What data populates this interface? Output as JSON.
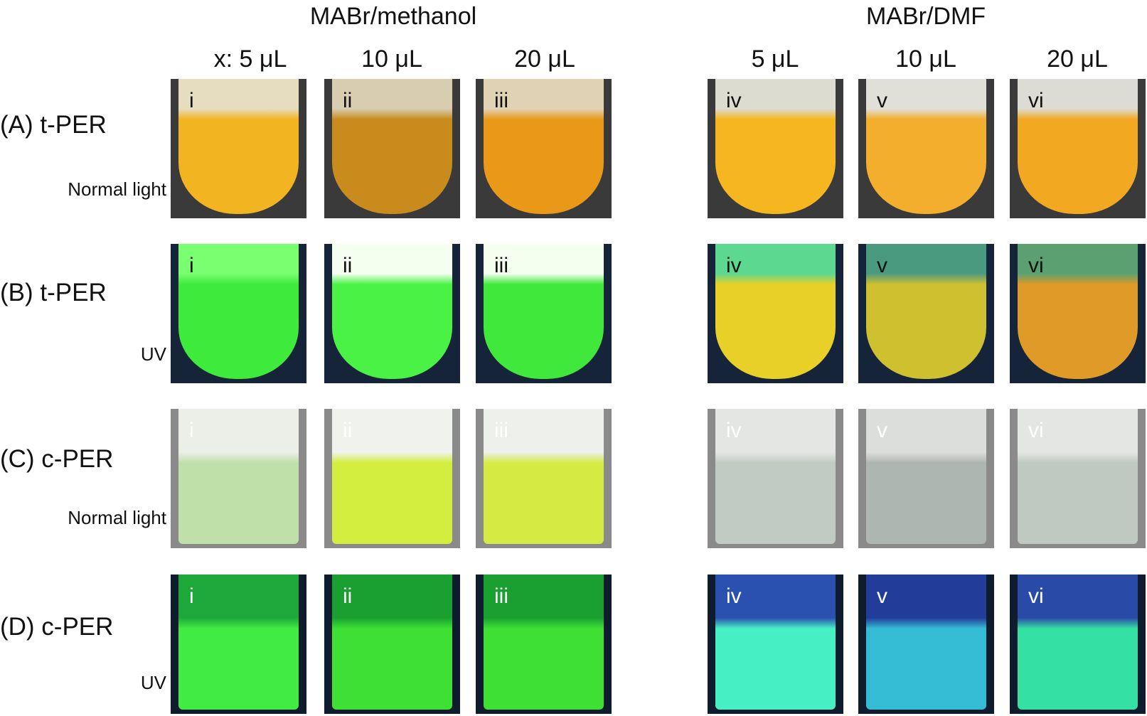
{
  "groups": [
    "MABr/methanol",
    "MABr/DMF"
  ],
  "columns": [
    "x: 5 μL",
    "10 μL",
    "20 μL",
    "5 μL",
    "10 μL",
    "20 μL"
  ],
  "panels": [
    "i",
    "ii",
    "iii",
    "iv",
    "v",
    "vi"
  ],
  "rows": [
    {
      "label": "(A) t-PER",
      "light": "Normal light"
    },
    {
      "label": "(B) t-PER",
      "light": "UV"
    },
    {
      "label": "(C) c-PER",
      "light": "Normal light"
    },
    {
      "label": "(D) c-PER",
      "light": "UV"
    }
  ]
}
